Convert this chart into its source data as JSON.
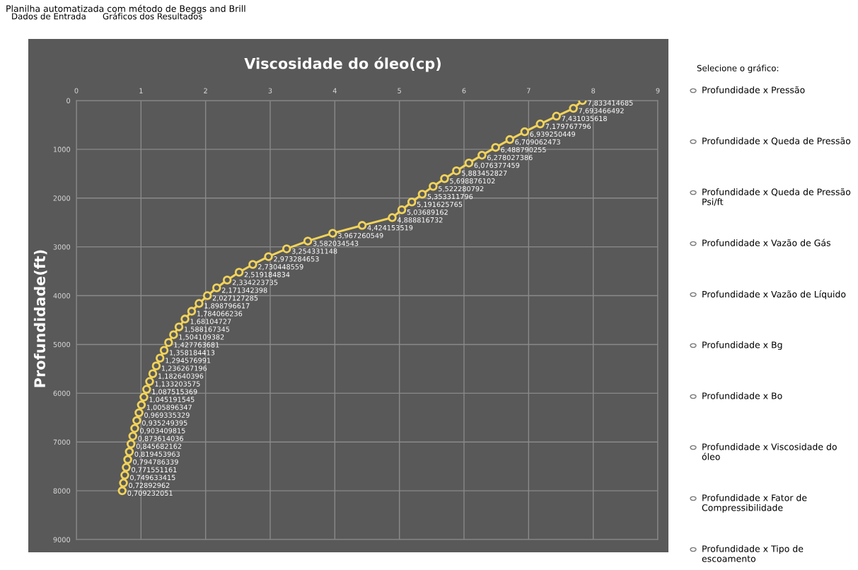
{
  "chart_data": {
    "type": "line",
    "orientation": "horizontal",
    "title": "Viscosidade do óleo(cp)",
    "ylabel": "Profundidade(ft)",
    "x": [
      0,
      160,
      320,
      480,
      640,
      800,
      960,
      1120,
      1280,
      1440,
      1600,
      1760,
      1920,
      2080,
      2240,
      2400,
      2560,
      2720,
      2880,
      3040,
      3200,
      3360,
      3520,
      3680,
      3840,
      4000,
      4160,
      4320,
      4480,
      4640,
      4800,
      4960,
      5120,
      5280,
      5440,
      5600,
      5760,
      5920,
      6080,
      6240,
      6400,
      6560,
      6720,
      6880,
      7040,
      7200,
      7360,
      7520,
      7680,
      7840,
      8000
    ],
    "series": [
      {
        "color": "#f2d35a",
        "values": [
          7.833414685,
          7.693466492,
          7.431035618,
          7.179767796,
          6.939250449,
          6.709062473,
          6.488790255,
          6.278027386,
          6.076377459,
          5.883452827,
          5.698876102,
          5.522280792,
          5.353311796,
          5.191625765,
          5.03689162,
          4.888816732,
          4.424153519,
          3.967260549,
          3.582034543,
          3.254331148,
          2.973284653,
          2.730448559,
          2.519184834,
          2.334223735,
          2.171342398,
          2.027127285,
          1.898796617,
          1.784066236,
          1.68104727,
          1.588167345,
          1.504109382,
          1.427763681,
          1.358184413,
          1.294576991,
          1.236267196,
          1.182640396,
          1.133203575,
          1.087515369,
          1.045191545,
          1.005896347,
          0.969335329,
          0.935249395,
          0.903409815,
          0.873614036,
          0.845682162,
          0.819453963,
          0.794786339,
          0.771551161,
          0.749633415,
          0.72892962,
          0.709232051
        ],
        "value_labels": [
          "7,833414685",
          "7,693466492",
          "7,431035618",
          "7,179767796",
          "6,939250449",
          "6,709062473",
          "6,488790255",
          "6,278027386",
          "6,076377459",
          "5,883452827",
          "5,698876102",
          "5,522280792",
          "5,353311796",
          "5,191625765",
          "5,03689162",
          "4,888816732",
          "4,424153519",
          "3,967260549",
          "3,582034543",
          "3,254331148",
          "2,973284653",
          "2,730448559",
          "2,519184834",
          "2,334223735",
          "2,171342398",
          "2,027127285",
          "1,898796617",
          "1,784066236",
          "1,68104727",
          "1,588167345",
          "1,504109382",
          "1,427763681",
          "1,358184413",
          "1,294576991",
          "1,236267196",
          "1,182640396",
          "1,133203575",
          "1,087515369",
          "1,045191545",
          "1,005896347",
          "0,969335329",
          "0,935249395",
          "0,903409815",
          "0,873614036",
          "0,845682162",
          "0,819453963",
          "0,794786339",
          "0,771551161",
          "0,749633415",
          "0,72892962",
          "0,709232051"
        ]
      }
    ],
    "xlim": [
      0,
      9
    ],
    "xticks": [
      0,
      1,
      2,
      3,
      4,
      5,
      6,
      7,
      8,
      9
    ],
    "ylim": [
      9000,
      0
    ],
    "yticks": [
      0,
      1000,
      2000,
      3000,
      4000,
      5000,
      6000,
      7000,
      8000,
      9000
    ],
    "grid": true,
    "marker": "circle",
    "line_style": "solid",
    "annotations": [
      "Planilha automatizada com método de Beggs and Brill",
      "Dados de Entrada",
      "Gráficos dos Resultados",
      "Selecione o gráfico:",
      "Profundidade x Pressão",
      "Profundidade x Queda de Pressão",
      "Profundidade x Queda de Pressão Psi/ft",
      "Profundidade x Vazão de Gás",
      "Profundidade x Vazão de Líquido",
      "Profundidade x Bg",
      "Profundidade x Bo",
      "Profundidade x Viscosidade do óleo",
      "Profundidade x Fator de Compressibilidade",
      "Profundidade x Tipo de escoamento"
    ]
  }
}
